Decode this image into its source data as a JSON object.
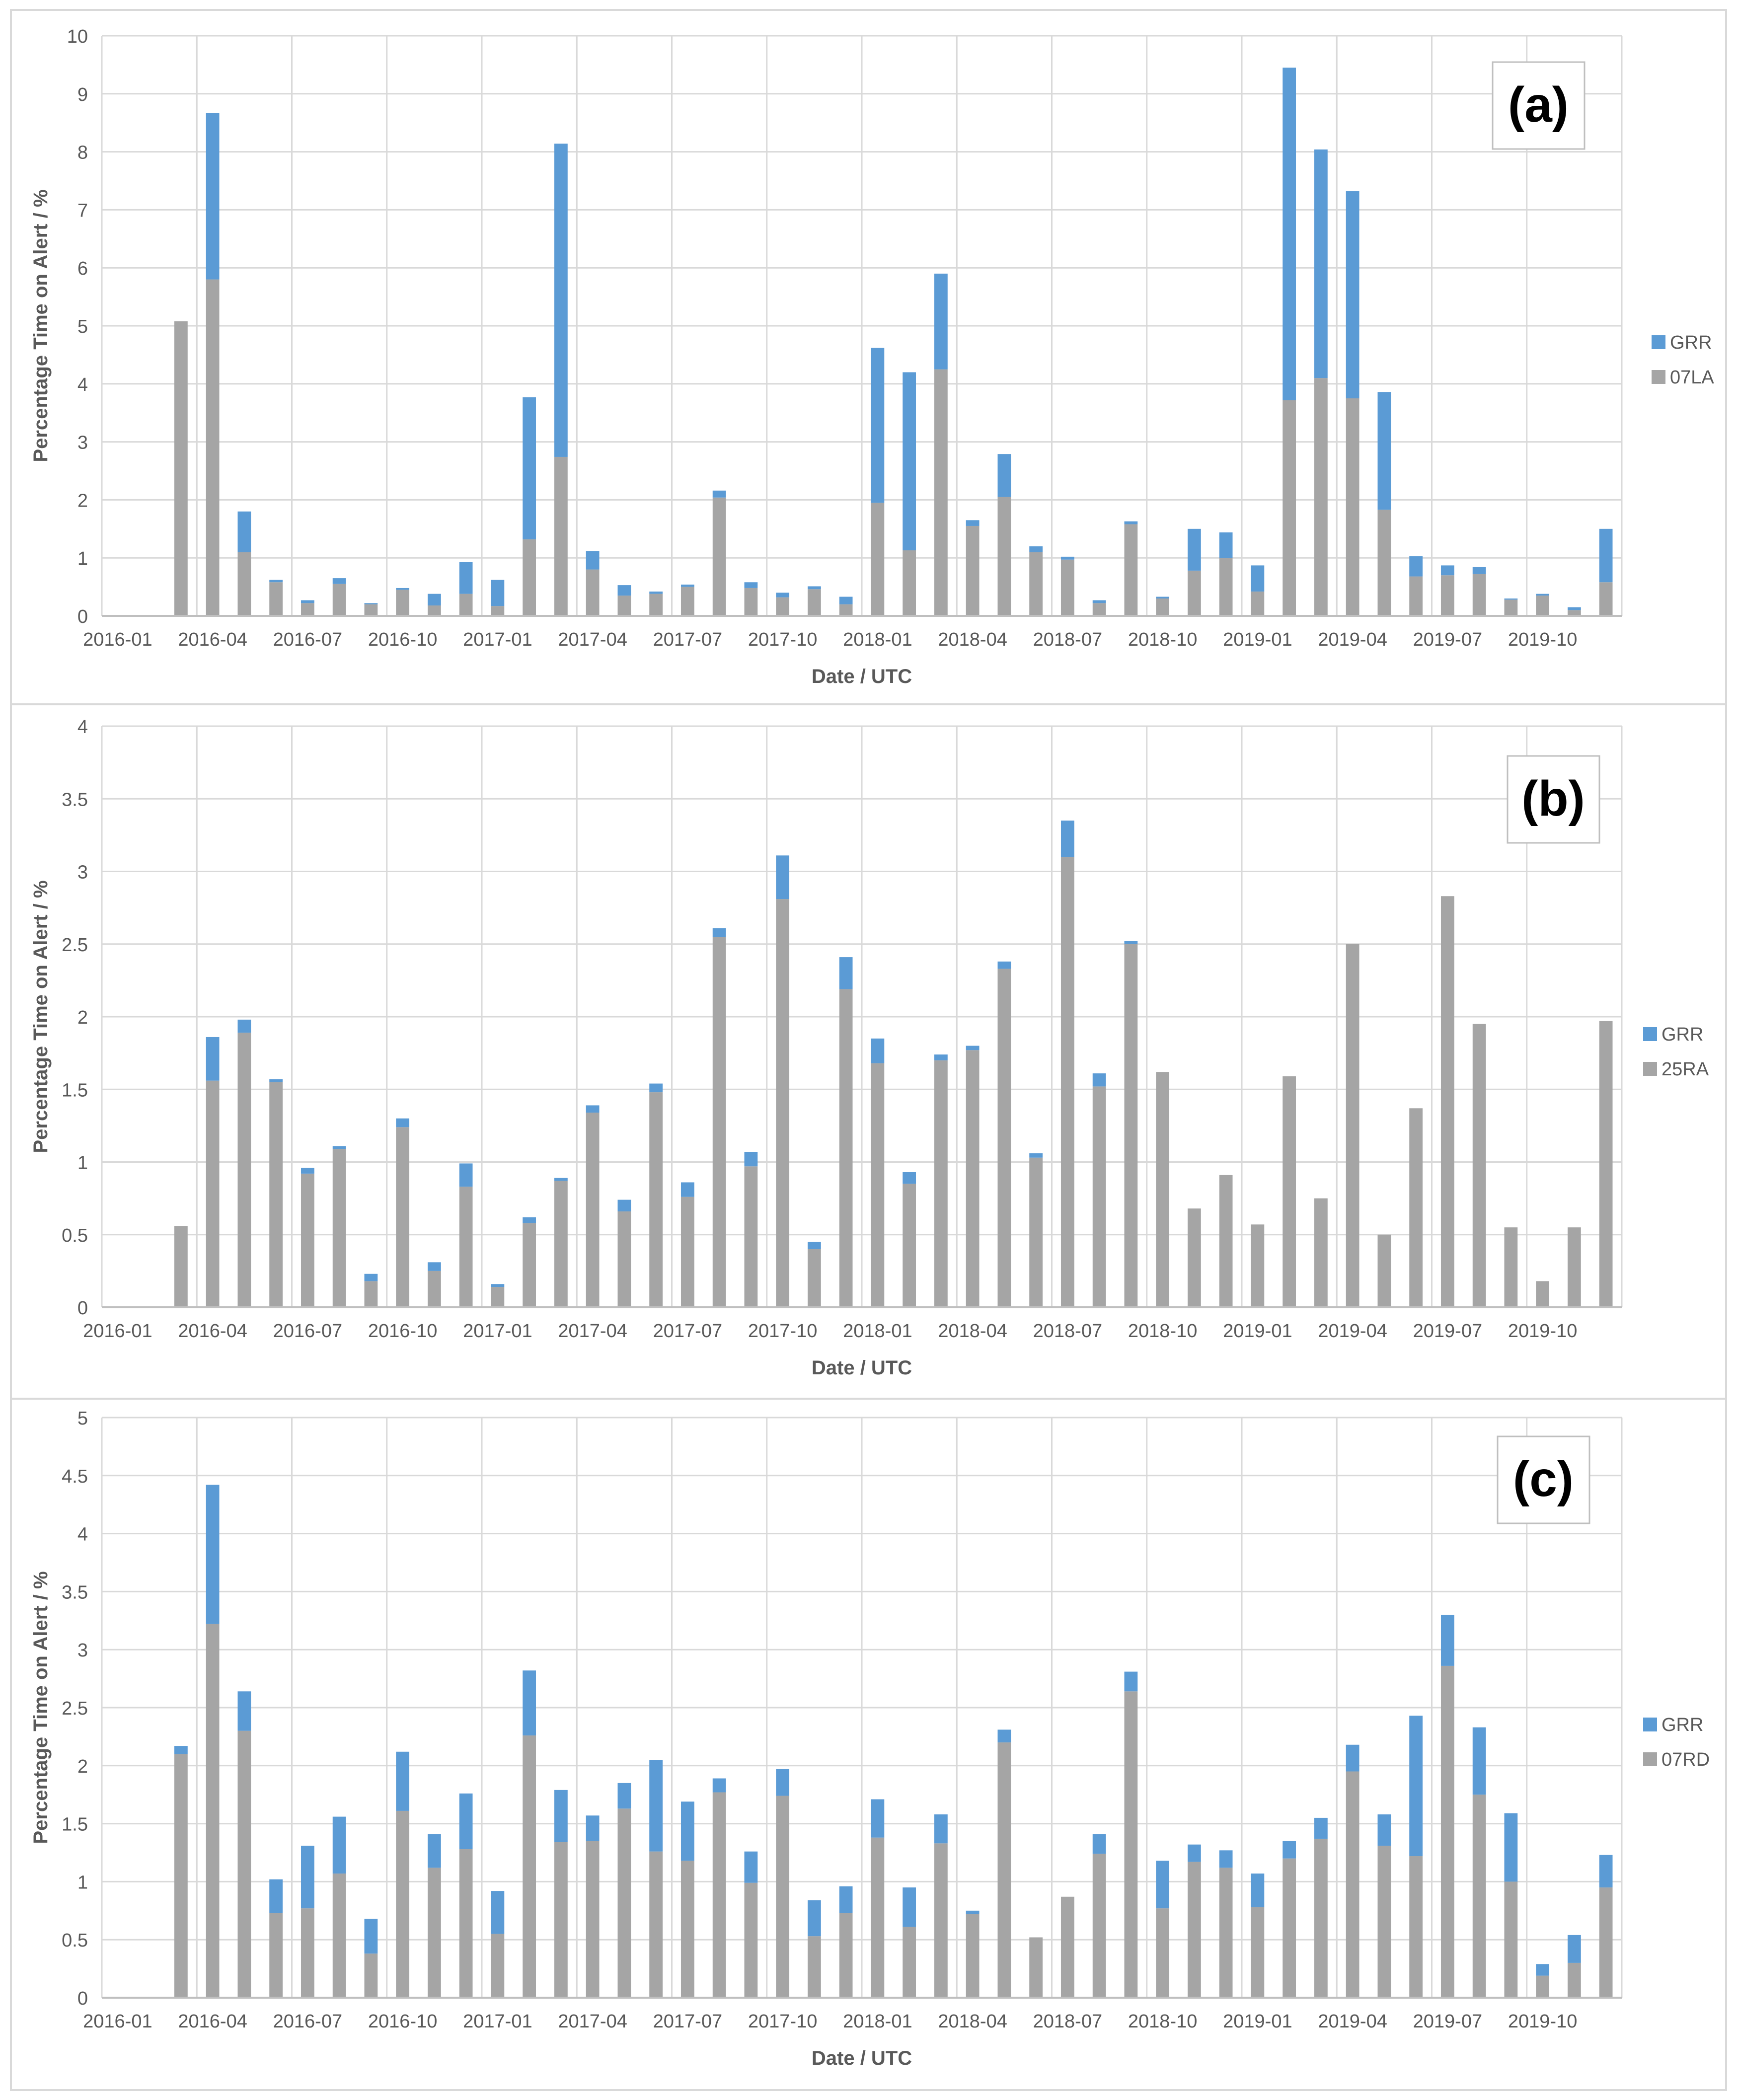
{
  "months": [
    "2016-01",
    "2016-02",
    "2016-03",
    "2016-04",
    "2016-05",
    "2016-06",
    "2016-07",
    "2016-08",
    "2016-09",
    "2016-10",
    "2016-11",
    "2016-12",
    "2017-01",
    "2017-02",
    "2017-03",
    "2017-04",
    "2017-05",
    "2017-06",
    "2017-07",
    "2017-08",
    "2017-09",
    "2017-10",
    "2017-11",
    "2017-12",
    "2018-01",
    "2018-02",
    "2018-03",
    "2018-04",
    "2018-05",
    "2018-06",
    "2018-07",
    "2018-08",
    "2018-09",
    "2018-10",
    "2018-11",
    "2018-12",
    "2019-01",
    "2019-02",
    "2019-03",
    "2019-04",
    "2019-05",
    "2019-06",
    "2019-07",
    "2019-08",
    "2019-09",
    "2019-10",
    "2019-11",
    "2019-12"
  ],
  "colors": {
    "grr": "#5b9bd5",
    "base": "#a5a5a5",
    "grid": "#d9d9d9",
    "axis": "#bfbfbf",
    "text": "#595959"
  },
  "chart_data": [
    {
      "type": "bar",
      "stacked": true,
      "panel_label": "(a)",
      "xlabel": "Date / UTC",
      "ylabel": "Percentage Time on Alert / %",
      "ylim": [
        0,
        10
      ],
      "yticks": [
        "0",
        "1",
        "2",
        "3",
        "4",
        "5",
        "6",
        "7",
        "8",
        "9",
        "10"
      ],
      "xtick_labels": [
        "2016-01",
        "2016-04",
        "2016-07",
        "2016-10",
        "2017-01",
        "2017-04",
        "2017-07",
        "2017-10",
        "2018-01",
        "2018-04",
        "2018-07",
        "2018-10",
        "2019-01",
        "2019-04",
        "2019-07",
        "2019-10"
      ],
      "legend_position": "right",
      "series": [
        {
          "name": "07LA",
          "color": "#a5a5a5",
          "values": [
            0,
            0,
            5.08,
            5.8,
            1.1,
            0.58,
            0.22,
            0.55,
            0.2,
            0.45,
            0.18,
            0.38,
            0.17,
            1.32,
            2.74,
            0.8,
            0.35,
            0.38,
            0.5,
            2.04,
            0.48,
            0.32,
            0.46,
            0.2,
            1.95,
            1.13,
            4.25,
            1.55,
            2.05,
            1.1,
            0.97,
            0.22,
            1.58,
            0.3,
            0.78,
            1.0,
            0.42,
            3.72,
            4.1,
            3.75,
            1.83,
            0.68,
            0.7,
            0.72,
            0.28,
            0.35,
            0.1,
            0.58
          ]
        },
        {
          "name": "GRR",
          "color": "#5b9bd5",
          "values": [
            0,
            0,
            0,
            2.87,
            0.7,
            0.04,
            0.05,
            0.1,
            0.02,
            0.03,
            0.2,
            0.55,
            0.45,
            2.45,
            5.4,
            0.32,
            0.18,
            0.04,
            0.04,
            0.12,
            0.1,
            0.08,
            0.05,
            0.13,
            2.67,
            3.07,
            1.65,
            0.1,
            0.74,
            0.1,
            0.05,
            0.05,
            0.05,
            0.03,
            0.72,
            0.44,
            0.45,
            5.73,
            3.94,
            3.57,
            2.03,
            0.35,
            0.17,
            0.12,
            0.02,
            0.03,
            0.05,
            0.92
          ]
        }
      ]
    },
    {
      "type": "bar",
      "stacked": true,
      "panel_label": "(b)",
      "xlabel": "Date / UTC",
      "ylabel": "Percentage Time on Alert / %",
      "ylim": [
        0,
        4
      ],
      "yticks": [
        "0",
        "0.5",
        "1",
        "1.5",
        "2",
        "2.5",
        "3",
        "3.5",
        "4"
      ],
      "xtick_labels": [
        "2016-01",
        "2016-04",
        "2016-07",
        "2016-10",
        "2017-01",
        "2017-04",
        "2017-07",
        "2017-10",
        "2018-01",
        "2018-04",
        "2018-07",
        "2018-10",
        "2019-01",
        "2019-04",
        "2019-07",
        "2019-10"
      ],
      "legend_position": "right",
      "series": [
        {
          "name": "25RA",
          "color": "#a5a5a5",
          "values": [
            0,
            0,
            0.56,
            1.56,
            1.89,
            1.55,
            0.92,
            1.09,
            0.18,
            1.24,
            0.25,
            0.83,
            0.14,
            0.58,
            0.87,
            1.34,
            0.66,
            1.48,
            0.76,
            2.55,
            0.97,
            2.81,
            0.4,
            2.19,
            1.68,
            0.85,
            1.7,
            1.77,
            2.33,
            1.03,
            3.1,
            1.52,
            2.5,
            1.62,
            0.68,
            0.91,
            0.57,
            1.59,
            0.75,
            2.5,
            0.5,
            1.37,
            2.83,
            1.95,
            0.55,
            0.18,
            0.55,
            1.97
          ]
        },
        {
          "name": "GRR",
          "color": "#5b9bd5",
          "values": [
            0,
            0,
            0,
            0.3,
            0.09,
            0.02,
            0.04,
            0.02,
            0.05,
            0.06,
            0.06,
            0.16,
            0.02,
            0.04,
            0.02,
            0.05,
            0.08,
            0.06,
            0.1,
            0.06,
            0.1,
            0.3,
            0.05,
            0.22,
            0.17,
            0.08,
            0.04,
            0.03,
            0.05,
            0.03,
            0.25,
            0.09,
            0.02,
            0,
            0,
            0,
            0,
            0,
            0,
            0,
            0,
            0,
            0,
            0,
            0,
            0,
            0,
            0
          ]
        }
      ]
    },
    {
      "type": "bar",
      "stacked": true,
      "panel_label": "(c)",
      "xlabel": "Date / UTC",
      "ylabel": "Percentage Time on Alert / %",
      "ylim": [
        0,
        5
      ],
      "yticks": [
        "0",
        "0.5",
        "1",
        "1.5",
        "2",
        "2.5",
        "3",
        "3.5",
        "4",
        "4.5",
        "5"
      ],
      "xtick_labels": [
        "2016-01",
        "2016-04",
        "2016-07",
        "2016-10",
        "2017-01",
        "2017-04",
        "2017-07",
        "2017-10",
        "2018-01",
        "2018-04",
        "2018-07",
        "2018-10",
        "2019-01",
        "2019-04",
        "2019-07",
        "2019-10"
      ],
      "legend_position": "right",
      "series": [
        {
          "name": "07RD",
          "color": "#a5a5a5",
          "values": [
            0,
            0,
            2.1,
            3.22,
            2.3,
            0.73,
            0.77,
            1.07,
            0.38,
            1.61,
            1.12,
            1.28,
            0.55,
            2.26,
            1.34,
            1.35,
            1.63,
            1.26,
            1.18,
            1.77,
            0.99,
            1.74,
            0.53,
            0.73,
            1.38,
            0.61,
            1.33,
            0.72,
            2.2,
            0.52,
            0.87,
            1.24,
            2.64,
            0.77,
            1.17,
            1.12,
            0.78,
            1.2,
            1.37,
            1.95,
            1.31,
            1.22,
            2.86,
            1.75,
            1.0,
            0.19,
            0.3,
            0.95
          ]
        },
        {
          "name": "GRR",
          "color": "#5b9bd5",
          "values": [
            0,
            0,
            0.07,
            1.2,
            0.34,
            0.29,
            0.54,
            0.49,
            0.3,
            0.51,
            0.29,
            0.48,
            0.37,
            0.56,
            0.45,
            0.22,
            0.22,
            0.79,
            0.51,
            0.12,
            0.27,
            0.23,
            0.31,
            0.23,
            0.33,
            0.34,
            0.25,
            0.03,
            0.11,
            0,
            0,
            0.17,
            0.17,
            0.41,
            0.15,
            0.15,
            0.29,
            0.15,
            0.18,
            0.23,
            0.27,
            1.21,
            0.44,
            0.58,
            0.59,
            0.1,
            0.24,
            0.28
          ]
        }
      ]
    }
  ]
}
